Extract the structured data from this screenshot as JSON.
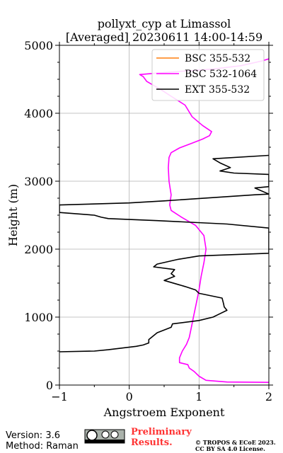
{
  "chart_data": {
    "type": "line",
    "title": "pollyxt_cyp at Limassol",
    "subtitle": "[Averaged] 20230611 14:00-14:59",
    "xlabel": "Angstroem Exponent",
    "ylabel": "Height (m)",
    "xlim": [
      -1,
      2
    ],
    "ylim": [
      0,
      5000
    ],
    "x_ticks": [
      -1,
      0,
      1,
      2
    ],
    "x_tick_labels": [
      "−1",
      "0",
      "1",
      "2"
    ],
    "y_ticks": [
      0,
      1000,
      2000,
      3000,
      4000,
      5000
    ],
    "y_tick_labels": [
      "0",
      "1000",
      "2000",
      "3000",
      "4000",
      "5000"
    ],
    "grid": true,
    "legend_position": "top-right",
    "series": [
      {
        "name": "BSC 355-532",
        "color": "#ff7f0e",
        "points": []
      },
      {
        "name": "BSC 532-1064",
        "color": "#ff00ff",
        "points": [
          [
            2.0,
            40
          ],
          [
            1.4,
            45
          ],
          [
            1.1,
            70
          ],
          [
            1.0,
            130
          ],
          [
            0.93,
            200
          ],
          [
            0.86,
            250
          ],
          [
            0.84,
            300
          ],
          [
            0.72,
            330
          ],
          [
            0.72,
            400
          ],
          [
            0.76,
            500
          ],
          [
            0.82,
            600
          ],
          [
            0.86,
            700
          ],
          [
            0.88,
            800
          ],
          [
            0.9,
            900
          ],
          [
            0.92,
            1000
          ],
          [
            0.96,
            1200
          ],
          [
            1.0,
            1400
          ],
          [
            1.03,
            1600
          ],
          [
            1.07,
            1800
          ],
          [
            1.1,
            2000
          ],
          [
            1.07,
            2200
          ],
          [
            0.95,
            2350
          ],
          [
            0.75,
            2470
          ],
          [
            0.6,
            2570
          ],
          [
            0.58,
            2650
          ],
          [
            0.6,
            2800
          ],
          [
            0.57,
            3000
          ],
          [
            0.56,
            3200
          ],
          [
            0.57,
            3350
          ],
          [
            0.6,
            3420
          ],
          [
            0.72,
            3490
          ],
          [
            0.9,
            3560
          ],
          [
            1.05,
            3620
          ],
          [
            1.15,
            3670
          ],
          [
            1.18,
            3730
          ],
          [
            1.05,
            3820
          ],
          [
            0.9,
            3950
          ],
          [
            0.8,
            4120
          ],
          [
            0.6,
            4250
          ],
          [
            0.45,
            4350
          ],
          [
            0.25,
            4470
          ],
          [
            0.2,
            4540
          ],
          [
            0.15,
            4570
          ],
          [
            0.5,
            4600
          ],
          [
            1.2,
            4650
          ],
          [
            1.6,
            4700
          ],
          [
            1.9,
            4770
          ],
          [
            2.0,
            4800
          ]
        ]
      },
      {
        "name": "EXT 355-532",
        "color": "#000000",
        "points": [
          [
            -1.0,
            490
          ],
          [
            -0.5,
            500
          ],
          [
            -0.3,
            520
          ],
          [
            -0.1,
            545
          ],
          [
            0.1,
            570
          ],
          [
            0.2,
            590
          ],
          [
            0.28,
            620
          ],
          [
            0.28,
            670
          ],
          [
            0.4,
            770
          ],
          [
            0.6,
            850
          ],
          [
            0.62,
            900
          ],
          [
            1.0,
            950
          ],
          [
            1.2,
            1000
          ],
          [
            1.3,
            1050
          ],
          [
            1.4,
            1100
          ],
          [
            1.36,
            1150
          ],
          [
            1.35,
            1200
          ],
          [
            1.33,
            1280
          ],
          [
            1.0,
            1350
          ],
          [
            0.95,
            1400
          ],
          [
            0.8,
            1450
          ],
          [
            0.5,
            1540
          ],
          [
            0.65,
            1600
          ],
          [
            0.6,
            1640
          ],
          [
            0.65,
            1700
          ],
          [
            0.35,
            1740
          ],
          [
            0.4,
            1780
          ],
          [
            0.7,
            1850
          ],
          [
            1.0,
            1900
          ],
          [
            2.0,
            1940
          ],
          [
            2.0,
            2310
          ],
          [
            1.4,
            2370
          ],
          [
            0.4,
            2420
          ],
          [
            -0.3,
            2450
          ],
          [
            -0.4,
            2470
          ],
          [
            -0.5,
            2500
          ],
          [
            -1.0,
            2540
          ],
          [
            -1.0,
            2650
          ],
          [
            0.0,
            2680
          ],
          [
            0.5,
            2710
          ],
          [
            1.8,
            2800
          ],
          [
            2.0,
            2810
          ],
          [
            1.8,
            2900
          ],
          [
            2.0,
            2920
          ],
          [
            2.0,
            3100
          ],
          [
            1.5,
            3120
          ],
          [
            1.3,
            3150
          ],
          [
            1.45,
            3200
          ],
          [
            1.3,
            3270
          ],
          [
            1.2,
            3330
          ],
          [
            2.0,
            3380
          ]
        ]
      }
    ],
    "legend": [
      {
        "label": "BSC 355-532",
        "color": "#ff7f0e"
      },
      {
        "label": "BSC 532-1064",
        "color": "#ff00ff"
      },
      {
        "label": "EXT 355-532",
        "color": "#000000"
      }
    ]
  },
  "footer": {
    "version": "Version: 3.6",
    "method": "Method: Raman",
    "preliminary_line1": "Preliminary",
    "preliminary_line2": "Results.",
    "copyright": "© TROPOS & ECoE 2023.",
    "license": "CC BY SA 4.0 License.",
    "preliminary_color": "#ff3333"
  }
}
